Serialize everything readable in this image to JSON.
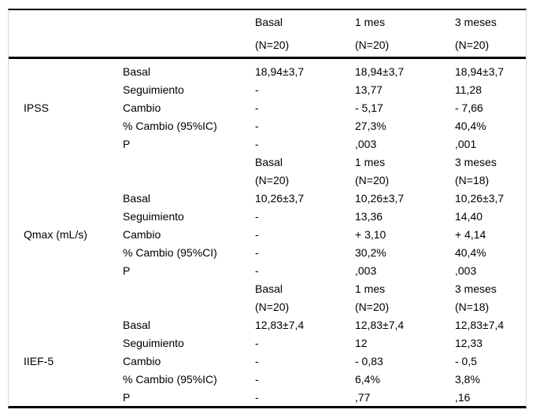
{
  "header": {
    "times": [
      "Basal",
      "1 mes",
      "3 meses"
    ],
    "ns": [
      "(N=20)",
      "(N=20)",
      "(N=20)"
    ]
  },
  "sections": [
    {
      "name": "IPSS",
      "rows": [
        {
          "label": "Basal",
          "v": [
            "18,94±3,7",
            "18,94±3,7",
            "18,94±3,7"
          ]
        },
        {
          "label": "Seguimiento",
          "v": [
            "-",
            "13,77",
            "11,28"
          ]
        },
        {
          "label": "Cambio",
          "v": [
            "-",
            "- 5,17",
            "- 7,66"
          ]
        },
        {
          "label": "% Cambio (95%IC)",
          "v": [
            "-",
            "27,3%",
            "40,4%"
          ]
        },
        {
          "label": "P",
          "v": [
            "-",
            ",003",
            ",001"
          ]
        }
      ]
    },
    {
      "name": "Qmax (mL/s)",
      "subheader": {
        "times": [
          "Basal",
          "1 mes",
          "3 meses"
        ],
        "ns": [
          "(N=20)",
          "(N=20)",
          "(N=18)"
        ]
      },
      "rows": [
        {
          "label": "Basal",
          "v": [
            "10,26±3,7",
            "10,26±3,7",
            "10,26±3,7"
          ]
        },
        {
          "label": "Seguimiento",
          "v": [
            "-",
            "13,36",
            "14,40"
          ]
        },
        {
          "label": "Cambio",
          "v": [
            "-",
            "+ 3,10",
            "+ 4,14"
          ]
        },
        {
          "label": "% Cambio (95%CI)",
          "v": [
            "-",
            "30,2%",
            "40,4%"
          ]
        },
        {
          "label": "P",
          "v": [
            "-",
            ",003",
            ",003"
          ]
        }
      ]
    },
    {
      "name": "IIEF-5",
      "subheader": {
        "times": [
          "Basal",
          "1 mes",
          "3 meses"
        ],
        "ns": [
          "(N=20)",
          "(N=20)",
          "(N=18)"
        ]
      },
      "rows": [
        {
          "label": "Basal",
          "v": [
            "12,83±7,4",
            "12,83±7,4",
            "12,83±7,4"
          ]
        },
        {
          "label": "Seguimiento",
          "v": [
            "-",
            "12",
            "12,33"
          ]
        },
        {
          "label": "Cambio",
          "v": [
            "-",
            "- 0,83",
            "- 0,5"
          ]
        },
        {
          "label": "% Cambio (95%IC)",
          "v": [
            "-",
            "6,4%",
            "3,8%"
          ]
        },
        {
          "label": "P",
          "v": [
            "-",
            ",77",
            ",16"
          ]
        }
      ]
    }
  ]
}
